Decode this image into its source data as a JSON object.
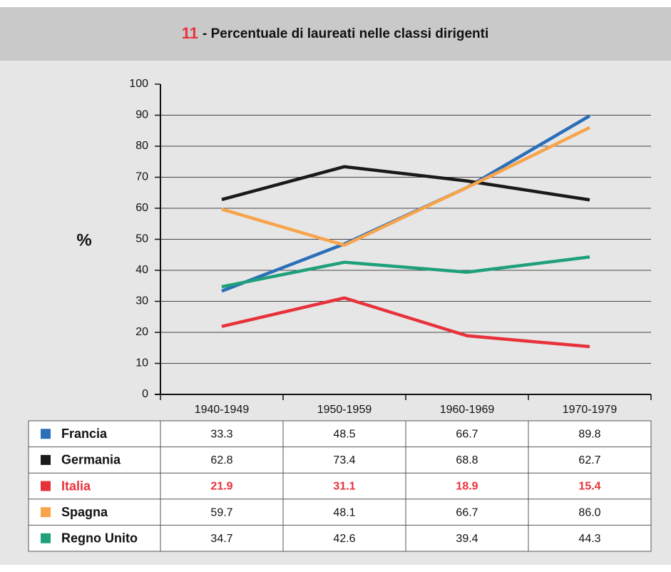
{
  "chart_data": {
    "type": "line",
    "title_number": "11",
    "title": "- Percentuale di laureati nelle classi dirigenti",
    "y_label": "%",
    "categories": [
      "1940-1949",
      "1950-1959",
      "1960-1969",
      "1970-1979"
    ],
    "ylim": [
      0,
      100
    ],
    "yticks": [
      0,
      10,
      20,
      30,
      40,
      50,
      60,
      70,
      80,
      90,
      100
    ],
    "grid": true,
    "series": [
      {
        "name": "Francia",
        "color": "#2b6fb8",
        "values": [
          33.3,
          48.5,
          66.7,
          89.8
        ]
      },
      {
        "name": "Germania",
        "color": "#1a1a1a",
        "values": [
          62.8,
          73.4,
          68.8,
          62.7
        ]
      },
      {
        "name": "Italia",
        "color": "#e8323b",
        "values": [
          21.9,
          31.1,
          18.9,
          15.4
        ],
        "highlight": true
      },
      {
        "name": "Spagna",
        "color": "#f7a44b",
        "values": [
          59.7,
          48.1,
          66.7,
          86
        ],
        "value_labels": [
          "59.7",
          "48.1",
          "66.7",
          "86.0"
        ]
      },
      {
        "name": "Regno Unito",
        "color": "#1fa07b",
        "values": [
          34.7,
          42.6,
          39.4,
          44.3
        ]
      }
    ]
  }
}
